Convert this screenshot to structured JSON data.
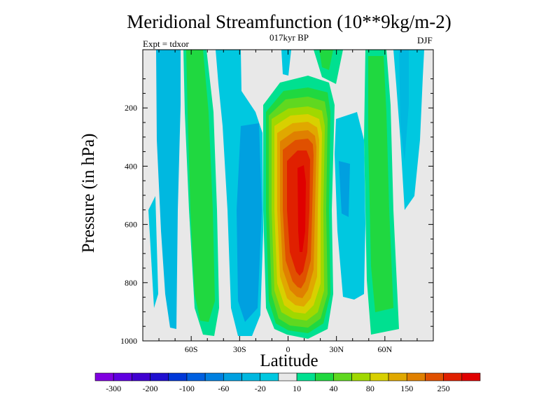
{
  "chart_data": {
    "type": "contour",
    "title": "Meridional Streamfunction (10**9kg/m-2)",
    "subtitle": "017kyr BP",
    "left_label": "Expt = tdxor",
    "right_label": "DJF",
    "xlabel": "Latitude",
    "ylabel": "Pressure (in hPa)",
    "xlim": [
      -90,
      90
    ],
    "ylim": [
      1000,
      0
    ],
    "x_ticks": [
      {
        "value": -60,
        "label": "60S"
      },
      {
        "value": -30,
        "label": "30S"
      },
      {
        "value": 0,
        "label": "0"
      },
      {
        "value": 30,
        "label": "30N"
      },
      {
        "value": 60,
        "label": "60N"
      }
    ],
    "y_ticks": [
      {
        "value": 200,
        "label": "200"
      },
      {
        "value": 400,
        "label": "400"
      },
      {
        "value": 600,
        "label": "600"
      },
      {
        "value": 800,
        "label": "800"
      },
      {
        "value": 1000,
        "label": "1000"
      }
    ],
    "colorbar": {
      "colors": [
        "#8000e0",
        "#6000e0",
        "#4000d0",
        "#2010d0",
        "#0038d8",
        "#0060e0",
        "#0080e0",
        "#00a0e0",
        "#00b8e0",
        "#00c8e0",
        "#e8e8e8",
        "#00e090",
        "#20d840",
        "#60d820",
        "#a0d800",
        "#d8d000",
        "#e0a800",
        "#e08000",
        "#e05000",
        "#e02000",
        "#e00000"
      ],
      "labels": [
        "-300",
        "-200",
        "-100",
        "-60",
        "-20",
        "10",
        "40",
        "80",
        "150",
        "250"
      ]
    },
    "features": [
      {
        "type": "max",
        "lat_range": [
          -15,
          22
        ],
        "value_level": 250,
        "description": "tropical positive cell"
      },
      {
        "type": "positive",
        "lat_range": [
          -50,
          -34
        ],
        "value_level": 40
      },
      {
        "type": "positive",
        "lat_range": [
          50,
          62
        ],
        "value_level": 40
      },
      {
        "type": "negative",
        "lat_range": [
          -80,
          -62
        ],
        "value_level": -20
      },
      {
        "type": "negative",
        "lat_range": [
          -28,
          -18
        ],
        "value_level": -20
      },
      {
        "type": "negative",
        "lat_range": [
          28,
          40
        ],
        "value_level": -20
      },
      {
        "type": "negative",
        "lat_range": [
          64,
          80
        ],
        "value_level": -20
      }
    ]
  }
}
